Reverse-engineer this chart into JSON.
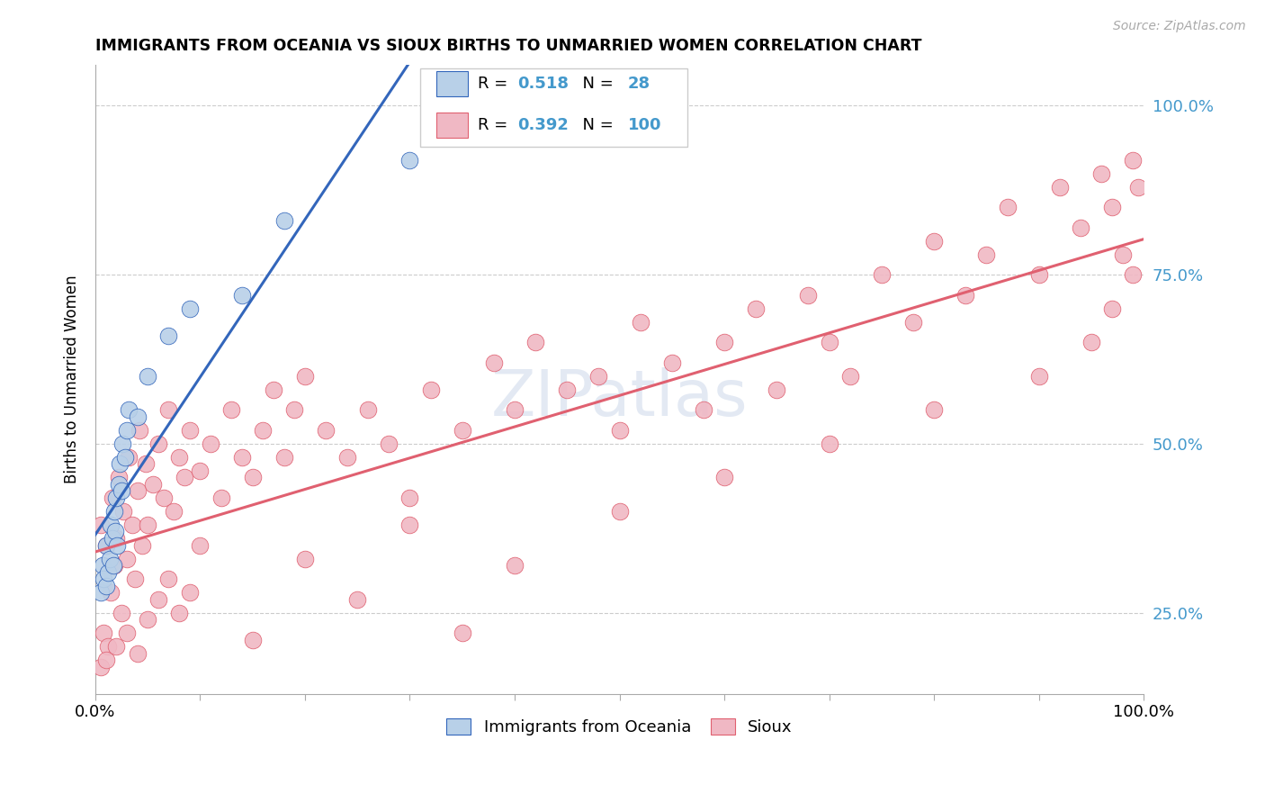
{
  "title": "IMMIGRANTS FROM OCEANIA VS SIOUX BIRTHS TO UNMARRIED WOMEN CORRELATION CHART",
  "source": "Source: ZipAtlas.com",
  "ylabel": "Births to Unmarried Women",
  "legend_blue_label": "Immigrants from Oceania",
  "legend_pink_label": "Sioux",
  "R_blue": 0.518,
  "N_blue": 28,
  "R_pink": 0.392,
  "N_pink": 100,
  "blue_color": "#b8d0e8",
  "pink_color": "#f0b8c4",
  "blue_line_color": "#3366bb",
  "pink_line_color": "#e06070",
  "ytick_color": "#4499cc",
  "blue_scatter_x": [
    0.005,
    0.007,
    0.008,
    0.01,
    0.01,
    0.012,
    0.014,
    0.015,
    0.016,
    0.017,
    0.018,
    0.019,
    0.02,
    0.021,
    0.022,
    0.023,
    0.025,
    0.026,
    0.028,
    0.03,
    0.032,
    0.04,
    0.05,
    0.07,
    0.09,
    0.14,
    0.18,
    0.3
  ],
  "blue_scatter_y": [
    0.28,
    0.32,
    0.3,
    0.29,
    0.35,
    0.31,
    0.33,
    0.38,
    0.36,
    0.32,
    0.4,
    0.37,
    0.42,
    0.35,
    0.44,
    0.47,
    0.43,
    0.5,
    0.48,
    0.52,
    0.55,
    0.54,
    0.6,
    0.66,
    0.7,
    0.72,
    0.83,
    0.92
  ],
  "pink_scatter_x": [
    0.005,
    0.008,
    0.01,
    0.012,
    0.015,
    0.016,
    0.018,
    0.02,
    0.022,
    0.025,
    0.027,
    0.03,
    0.032,
    0.035,
    0.038,
    0.04,
    0.042,
    0.045,
    0.048,
    0.05,
    0.055,
    0.06,
    0.065,
    0.07,
    0.075,
    0.08,
    0.085,
    0.09,
    0.1,
    0.11,
    0.12,
    0.13,
    0.14,
    0.15,
    0.16,
    0.17,
    0.18,
    0.19,
    0.2,
    0.22,
    0.24,
    0.26,
    0.28,
    0.3,
    0.32,
    0.35,
    0.38,
    0.4,
    0.42,
    0.45,
    0.48,
    0.5,
    0.52,
    0.55,
    0.58,
    0.6,
    0.63,
    0.65,
    0.68,
    0.7,
    0.72,
    0.75,
    0.78,
    0.8,
    0.83,
    0.85,
    0.87,
    0.9,
    0.92,
    0.94,
    0.96,
    0.97,
    0.98,
    0.99,
    0.995,
    0.005,
    0.01,
    0.02,
    0.03,
    0.04,
    0.05,
    0.06,
    0.07,
    0.08,
    0.09,
    0.1,
    0.15,
    0.2,
    0.25,
    0.3,
    0.35,
    0.4,
    0.5,
    0.6,
    0.7,
    0.8,
    0.9,
    0.95,
    0.97,
    0.99
  ],
  "pink_scatter_y": [
    0.38,
    0.22,
    0.35,
    0.2,
    0.28,
    0.42,
    0.32,
    0.36,
    0.45,
    0.25,
    0.4,
    0.33,
    0.48,
    0.38,
    0.3,
    0.43,
    0.52,
    0.35,
    0.47,
    0.38,
    0.44,
    0.5,
    0.42,
    0.55,
    0.4,
    0.48,
    0.45,
    0.52,
    0.46,
    0.5,
    0.42,
    0.55,
    0.48,
    0.45,
    0.52,
    0.58,
    0.48,
    0.55,
    0.6,
    0.52,
    0.48,
    0.55,
    0.5,
    0.42,
    0.58,
    0.52,
    0.62,
    0.55,
    0.65,
    0.58,
    0.6,
    0.52,
    0.68,
    0.62,
    0.55,
    0.65,
    0.7,
    0.58,
    0.72,
    0.65,
    0.6,
    0.75,
    0.68,
    0.8,
    0.72,
    0.78,
    0.85,
    0.75,
    0.88,
    0.82,
    0.9,
    0.85,
    0.78,
    0.92,
    0.88,
    0.17,
    0.18,
    0.2,
    0.22,
    0.19,
    0.24,
    0.27,
    0.3,
    0.25,
    0.28,
    0.35,
    0.21,
    0.33,
    0.27,
    0.38,
    0.22,
    0.32,
    0.4,
    0.45,
    0.5,
    0.55,
    0.6,
    0.65,
    0.7,
    0.75
  ]
}
